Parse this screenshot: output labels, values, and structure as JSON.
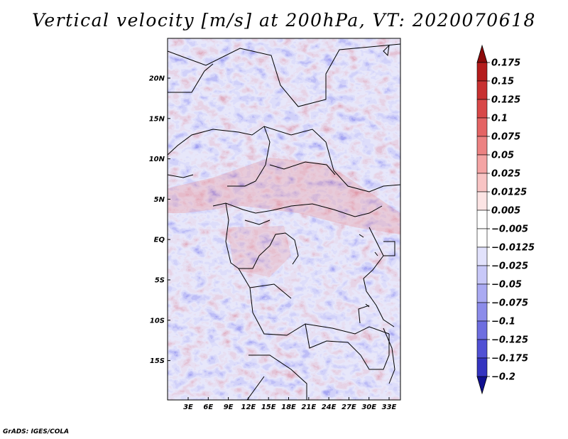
{
  "title": "Vertical velocity [m/s] at 200hPa, VT: 2020070618",
  "credit": "GrADS: IGES/COLA",
  "map": {
    "lat_labels": [
      "20N",
      "15N",
      "10N",
      "5N",
      "EQ",
      "5S",
      "10S",
      "15S"
    ],
    "lon_labels": [
      "3E",
      "6E",
      "9E",
      "12E",
      "15E",
      "18E",
      "21E",
      "24E",
      "27E",
      "30E",
      "33E"
    ],
    "lon_range": [
      0,
      35
    ],
    "lat_range": [
      -20,
      25
    ]
  },
  "colorbar": {
    "levels": [
      {
        "label": "0.175",
        "color": "#a01010"
      },
      {
        "label": "0.15",
        "color": "#b41c1c"
      },
      {
        "label": "0.125",
        "color": "#c83030"
      },
      {
        "label": "0.1",
        "color": "#d84848"
      },
      {
        "label": "0.075",
        "color": "#e46464"
      },
      {
        "label": "0.05",
        "color": "#ec8282"
      },
      {
        "label": "0.025",
        "color": "#f4a4a4"
      },
      {
        "label": "0.0125",
        "color": "#f8c4c4"
      },
      {
        "label": "0.005",
        "color": "#fce4e4"
      },
      {
        "label": "−0.005",
        "color": "#ffffff"
      },
      {
        "label": "−0.0125",
        "color": "#e2e2fc"
      },
      {
        "label": "−0.025",
        "color": "#c8c8f8"
      },
      {
        "label": "−0.05",
        "color": "#aaaaf2"
      },
      {
        "label": "−0.075",
        "color": "#8c8cea"
      },
      {
        "label": "−0.1",
        "color": "#6e6ee0"
      },
      {
        "label": "−0.125",
        "color": "#5050d4"
      },
      {
        "label": "−0.175",
        "color": "#3434c0"
      },
      {
        "label": "−0.2",
        "color": "#1c1ca8"
      }
    ],
    "top_arrow_color": "#8c0a0a",
    "bottom_arrow_color": "#101090"
  }
}
